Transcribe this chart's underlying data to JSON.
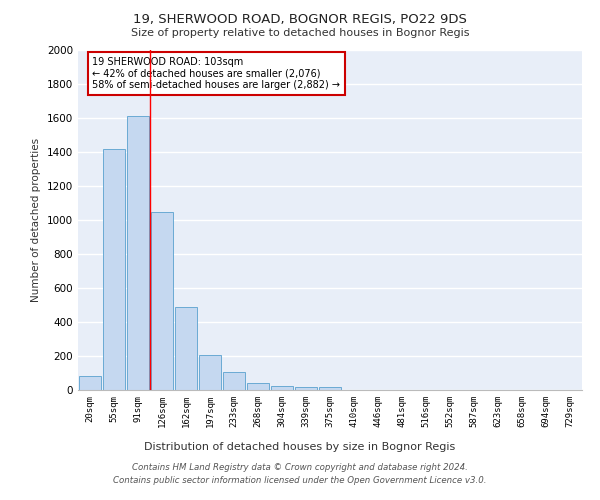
{
  "title1": "19, SHERWOOD ROAD, BOGNOR REGIS, PO22 9DS",
  "title2": "Size of property relative to detached houses in Bognor Regis",
  "xlabel": "Distribution of detached houses by size in Bognor Regis",
  "ylabel": "Number of detached properties",
  "categories": [
    "20sqm",
    "55sqm",
    "91sqm",
    "126sqm",
    "162sqm",
    "197sqm",
    "233sqm",
    "268sqm",
    "304sqm",
    "339sqm",
    "375sqm",
    "410sqm",
    "446sqm",
    "481sqm",
    "516sqm",
    "552sqm",
    "587sqm",
    "623sqm",
    "658sqm",
    "694sqm",
    "729sqm"
  ],
  "values": [
    85,
    1420,
    1610,
    1050,
    490,
    205,
    105,
    40,
    25,
    20,
    15,
    0,
    0,
    0,
    0,
    0,
    0,
    0,
    0,
    0,
    0
  ],
  "bar_color": "#c5d8f0",
  "bar_edge_color": "#6aaad4",
  "background_color": "#e8eef8",
  "grid_color": "#ffffff",
  "red_line_x": 2.5,
  "annotation_text": "19 SHERWOOD ROAD: 103sqm\n← 42% of detached houses are smaller (2,076)\n58% of semi-detached houses are larger (2,882) →",
  "annotation_box_color": "#ffffff",
  "annotation_border_color": "#cc0000",
  "footer": "Contains HM Land Registry data © Crown copyright and database right 2024.\nContains public sector information licensed under the Open Government Licence v3.0.",
  "ylim": [
    0,
    2000
  ],
  "yticks": [
    0,
    200,
    400,
    600,
    800,
    1000,
    1200,
    1400,
    1600,
    1800,
    2000
  ]
}
